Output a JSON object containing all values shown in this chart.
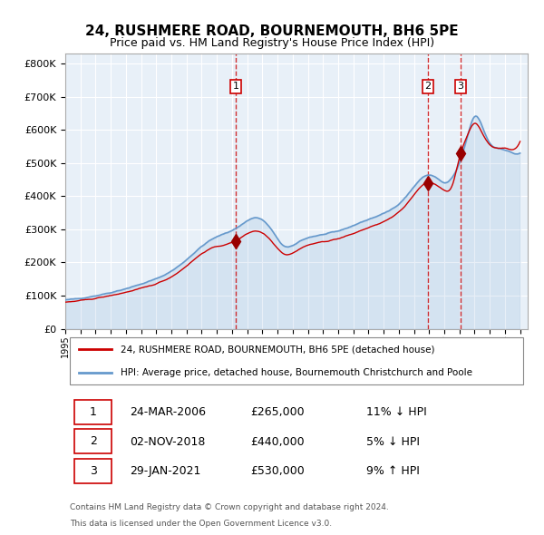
{
  "title": "24, RUSHMERE ROAD, BOURNEMOUTH, BH6 5PE",
  "subtitle": "Price paid vs. HM Land Registry's House Price Index (HPI)",
  "legend_line1": "24, RUSHMERE ROAD, BOURNEMOUTH, BH6 5PE (detached house)",
  "legend_line2": "HPI: Average price, detached house, Bournemouth Christchurch and Poole",
  "sale1_date": "24-MAR-2006",
  "sale1_price": 265000,
  "sale1_pct": "11% ↓ HPI",
  "sale1_label": "1",
  "sale2_date": "02-NOV-2018",
  "sale2_price": 440000,
  "sale2_pct": "5% ↓ HPI",
  "sale2_label": "2",
  "sale3_date": "29-JAN-2021",
  "sale3_price": 530000,
  "sale3_pct": "9% ↑ HPI",
  "sale3_label": "3",
  "footer1": "Contains HM Land Registry data © Crown copyright and database right 2024.",
  "footer2": "This data is licensed under the Open Government Licence v3.0.",
  "hpi_color": "#6699cc",
  "price_color": "#cc0000",
  "sale_marker_color": "#990000",
  "vline_color": "#cc0000",
  "bg_color": "#ddeeff",
  "plot_bg": "#e8f0f8",
  "ylim": [
    0,
    830000
  ],
  "yticks": [
    0,
    100000,
    200000,
    300000,
    400000,
    500000,
    600000,
    700000,
    800000
  ]
}
